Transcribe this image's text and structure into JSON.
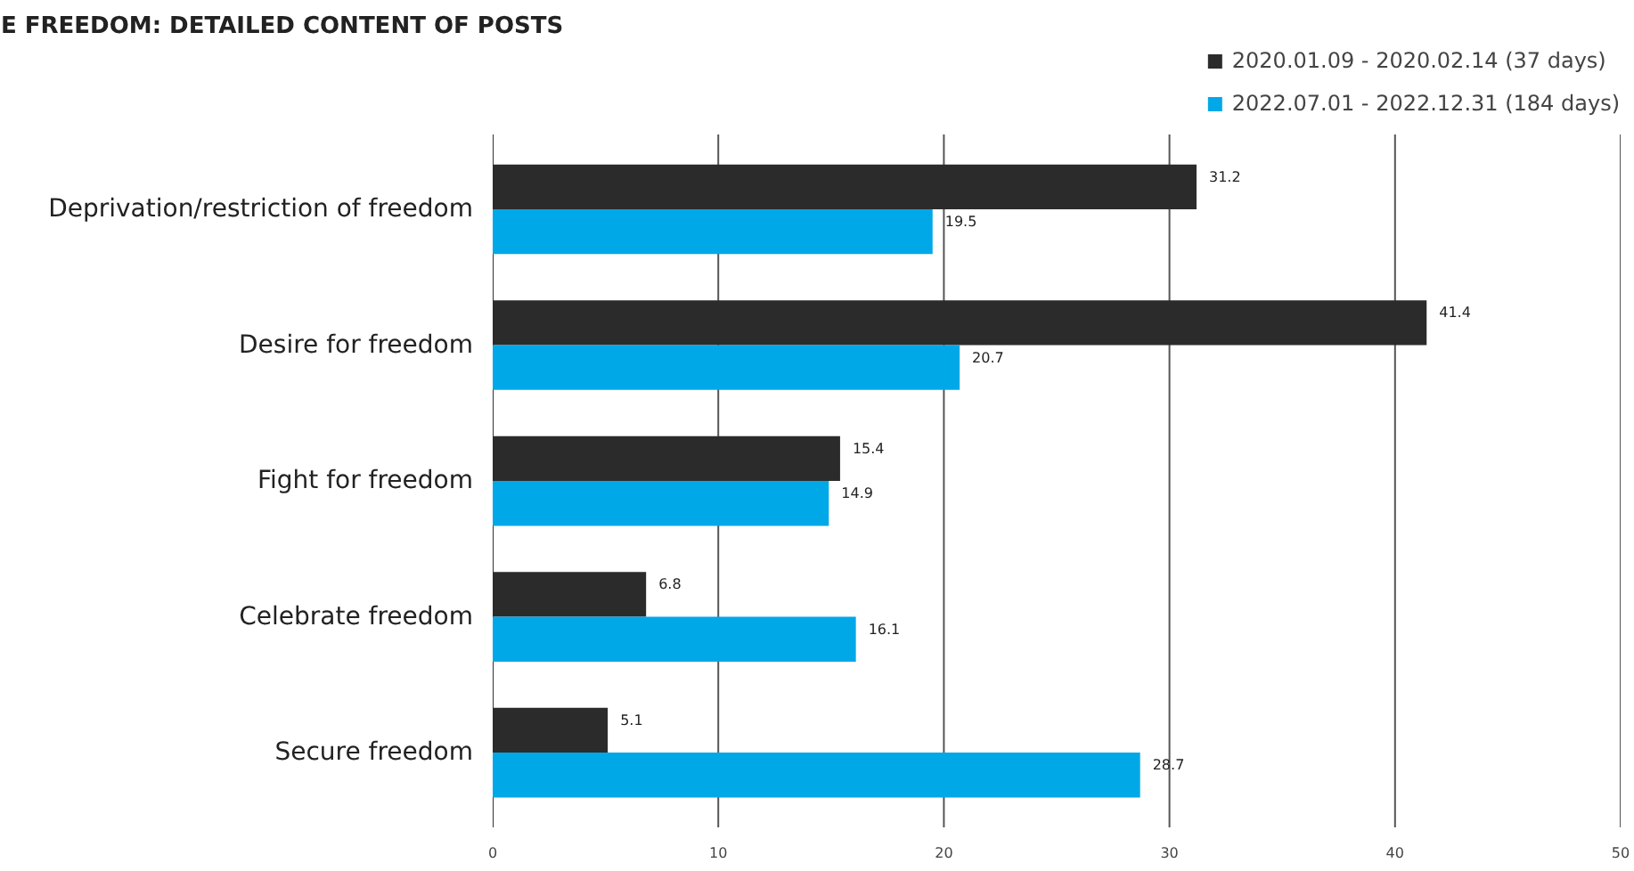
{
  "chart_data": {
    "type": "bar",
    "orientation": "horizontal",
    "title": "E FREEDOM: DETAILED CONTENT OF POSTS",
    "categories": [
      "Deprivation/restriction of freedom",
      "Desire for freedom",
      "Fight for freedom",
      "Celebrate freedom",
      "Secure freedom"
    ],
    "series": [
      {
        "name": "2020.01.09 - 2020.02.14 (37 days)",
        "color": "#2b2b2b",
        "values": [
          31.2,
          41.4,
          15.4,
          6.8,
          5.1
        ]
      },
      {
        "name": "2022.07.01 - 2022.12.31 (184 days)",
        "color": "#00a8e8",
        "values": [
          19.5,
          20.7,
          14.9,
          16.1,
          28.7
        ]
      }
    ],
    "xlim": [
      0,
      50
    ],
    "xticks": [
      0,
      10,
      20,
      30,
      40,
      50
    ],
    "grid": "x",
    "legend": "top right",
    "data_labels": true
  }
}
